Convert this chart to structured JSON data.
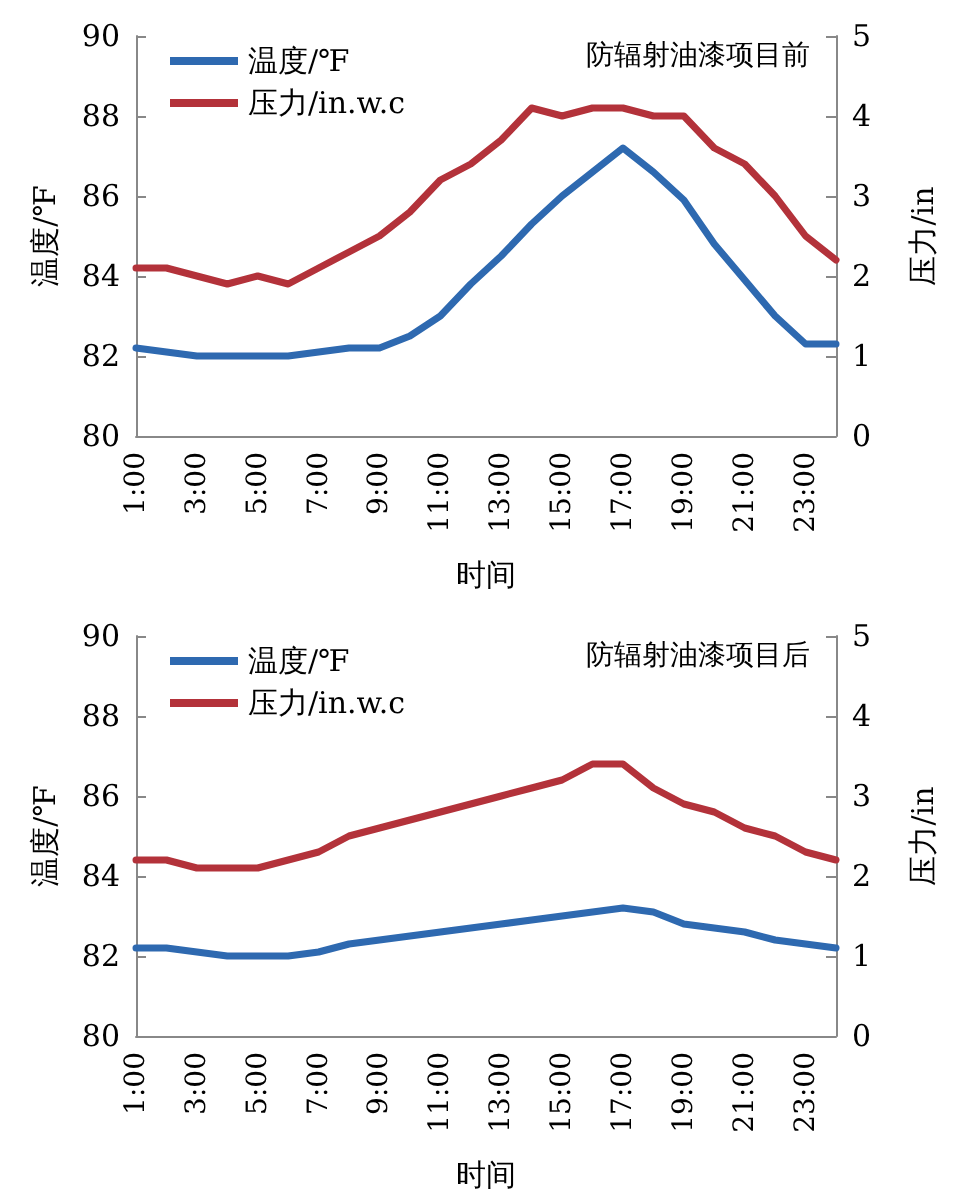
{
  "chart_data": [
    {
      "type": "line",
      "title": "防辐射油漆项目前",
      "xlabel": "时间",
      "ylabel": "温度/℉",
      "y2label": "压力/in",
      "categories": [
        "1:00",
        null,
        "3:00",
        null,
        "5:00",
        null,
        "7:00",
        null,
        "9:00",
        null,
        "11:00",
        null,
        "13:00",
        null,
        "15:00",
        null,
        "17:00",
        null,
        "19:00",
        null,
        "21:00",
        null,
        "23:00",
        null
      ],
      "series": [
        {
          "name": "温度/℉",
          "color": "#2e69b0",
          "values": [
            82.2,
            82.1,
            82.0,
            82.0,
            82.0,
            82.0,
            82.1,
            82.2,
            82.2,
            82.5,
            83.0,
            83.8,
            84.5,
            85.3,
            86.0,
            86.6,
            87.2,
            86.6,
            85.9,
            84.8,
            83.9,
            83.0,
            82.3,
            82.3
          ]
        },
        {
          "name": "压力/in.w.c",
          "color": "#b3323a",
          "axis": "y2",
          "values": [
            2.1,
            2.1,
            2.0,
            1.9,
            2.0,
            1.9,
            2.1,
            2.3,
            2.5,
            2.8,
            3.2,
            3.4,
            3.7,
            4.1,
            4.0,
            4.1,
            4.1,
            4.0,
            4.0,
            3.6,
            3.4,
            3.0,
            2.5,
            2.2
          ]
        }
      ],
      "ylim": [
        80,
        90
      ],
      "yticks": [
        80,
        82,
        84,
        86,
        88,
        90
      ],
      "y2lim": [
        0,
        5
      ],
      "y2ticks": [
        0,
        1,
        2,
        3,
        4,
        5
      ],
      "grid": false,
      "legend": "top left",
      "marker": "none",
      "line_style": "solid"
    },
    {
      "type": "line",
      "title": "防辐射油漆项目后",
      "xlabel": "时间",
      "ylabel": "温度/℉",
      "y2label": "压力/in",
      "categories": [
        "1:00",
        null,
        "3:00",
        null,
        "5:00",
        null,
        "7:00",
        null,
        "9:00",
        null,
        "11:00",
        null,
        "13:00",
        null,
        "15:00",
        null,
        "17:00",
        null,
        "19:00",
        null,
        "21:00",
        null,
        "23:00",
        null
      ],
      "series": [
        {
          "name": "温度/℉",
          "color": "#2e69b0",
          "values": [
            82.2,
            82.2,
            82.1,
            82.0,
            82.0,
            82.0,
            82.1,
            82.3,
            82.4,
            82.5,
            82.6,
            82.7,
            82.8,
            82.9,
            83.0,
            83.1,
            83.2,
            83.1,
            82.8,
            82.7,
            82.6,
            82.4,
            82.3,
            82.2
          ]
        },
        {
          "name": "压力/in.w.c",
          "color": "#b3323a",
          "axis": "y2",
          "values": [
            2.2,
            2.2,
            2.1,
            2.1,
            2.1,
            2.2,
            2.3,
            2.5,
            2.6,
            2.7,
            2.8,
            2.9,
            3.0,
            3.1,
            3.2,
            3.4,
            3.4,
            3.1,
            2.9,
            2.8,
            2.6,
            2.5,
            2.3,
            2.2
          ]
        }
      ],
      "ylim": [
        80,
        90
      ],
      "yticks": [
        80,
        82,
        84,
        86,
        88,
        90
      ],
      "y2lim": [
        0,
        5
      ],
      "y2ticks": [
        0,
        1,
        2,
        3,
        4,
        5
      ],
      "grid": false,
      "legend": "top left",
      "marker": "none",
      "line_style": "solid"
    }
  ]
}
